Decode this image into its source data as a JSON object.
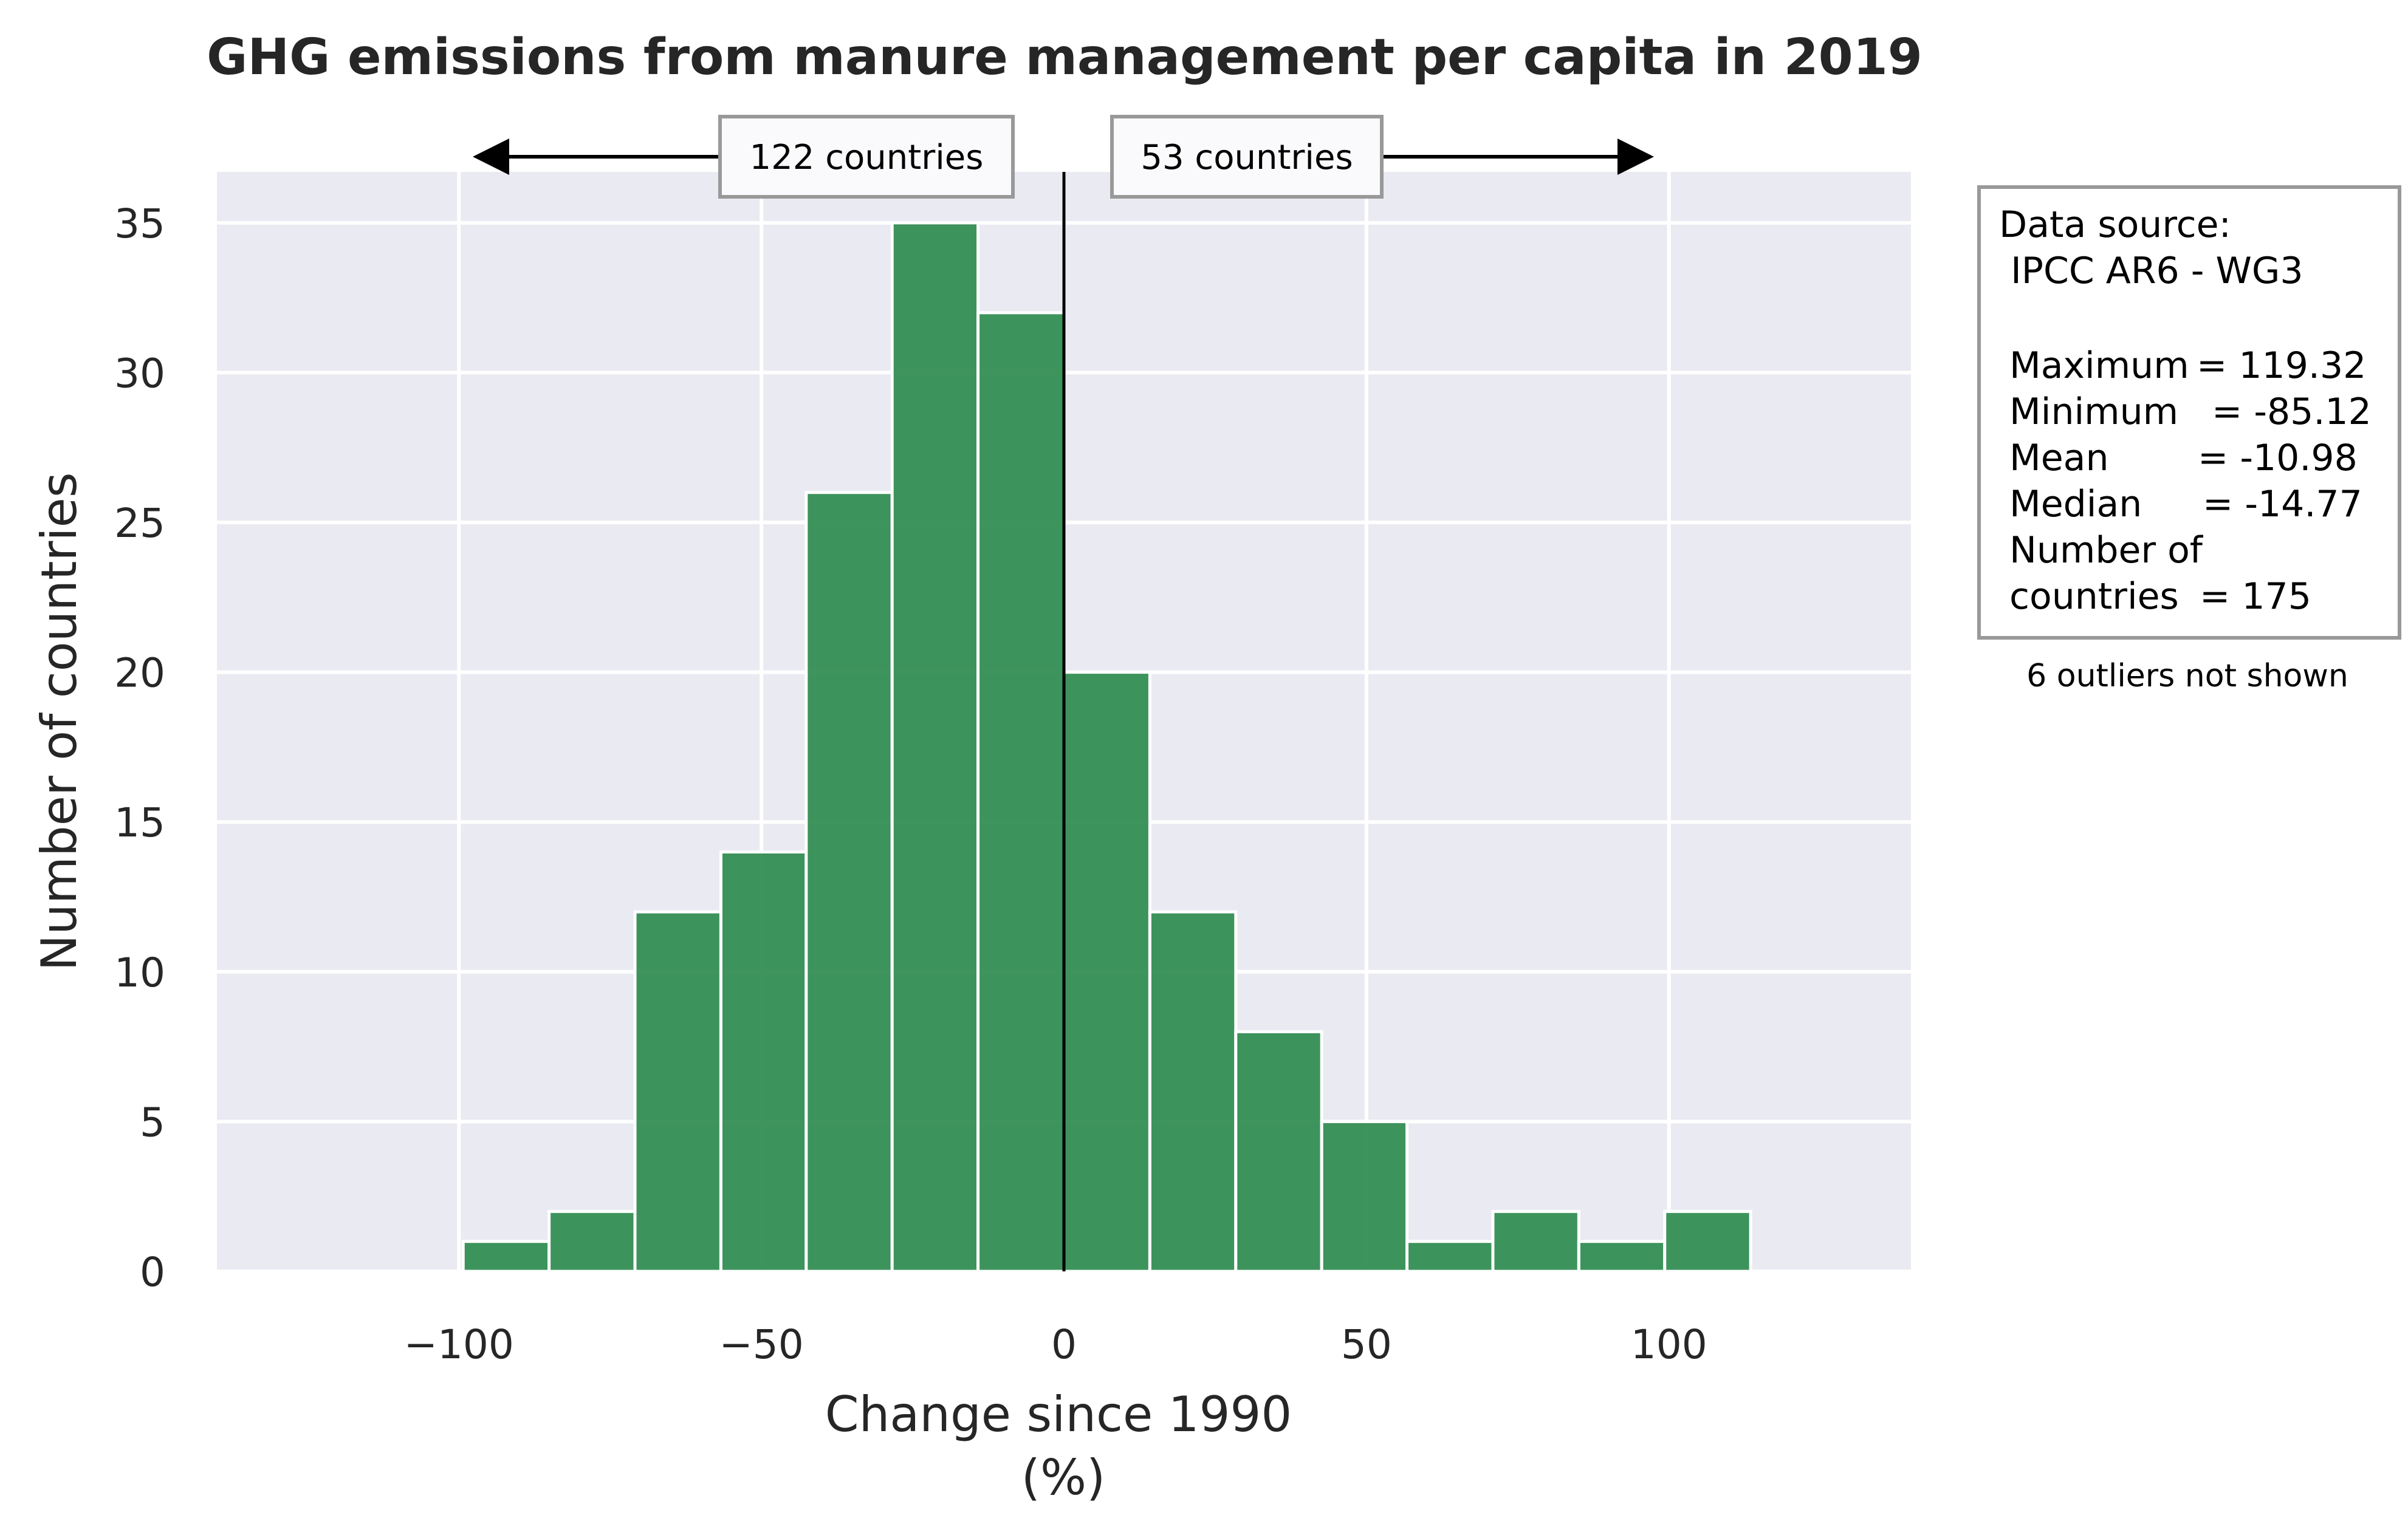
{
  "chart_data": {
    "type": "bar",
    "title": "GHG emissions from manure management per capita in 2019",
    "xlabel": "Change since 1990",
    "xlabel_unit": "(%)",
    "ylabel": "Number of countries",
    "xlim": [
      -140,
      140
    ],
    "ylim": [
      0,
      36.7
    ],
    "x_ticks": [
      -100,
      -50,
      0,
      50,
      100
    ],
    "x_tick_labels": [
      "−100",
      "−50",
      "0",
      "50",
      "100"
    ],
    "y_ticks": [
      0,
      5,
      10,
      15,
      20,
      25,
      30,
      35
    ],
    "y_tick_labels": [
      "0",
      "5",
      "10",
      "15",
      "20",
      "25",
      "30",
      "35"
    ],
    "grid": true,
    "bar_color": "#2e8b4f",
    "plot_background": "#eaeaf2",
    "bins": [
      {
        "x0": -99.3,
        "x1": -85.1,
        "count": 1
      },
      {
        "x0": -85.1,
        "x1": -70.9,
        "count": 2
      },
      {
        "x0": -70.9,
        "x1": -56.7,
        "count": 12
      },
      {
        "x0": -56.7,
        "x1": -42.6,
        "count": 14
      },
      {
        "x0": -42.6,
        "x1": -28.4,
        "count": 26
      },
      {
        "x0": -28.4,
        "x1": -14.2,
        "count": 35
      },
      {
        "x0": -14.2,
        "x1": 0.0,
        "count": 32
      },
      {
        "x0": 0.0,
        "x1": 14.2,
        "count": 20
      },
      {
        "x0": 14.2,
        "x1": 28.4,
        "count": 12
      },
      {
        "x0": 28.4,
        "x1": 42.6,
        "count": 8
      },
      {
        "x0": 42.6,
        "x1": 56.7,
        "count": 5
      },
      {
        "x0": 56.7,
        "x1": 70.9,
        "count": 1
      },
      {
        "x0": 70.9,
        "x1": 85.1,
        "count": 2
      },
      {
        "x0": 85.1,
        "x1": 99.3,
        "count": 1
      },
      {
        "x0": 99.3,
        "x1": 113.5,
        "count": 2
      }
    ],
    "reference_line_x": 0,
    "annotations": {
      "left_count": "122 countries",
      "right_count": "53 countries"
    },
    "info_box": {
      "source_label": "Data source:",
      "source_value": " IPCC AR6 - WG3",
      "stats": [
        {
          "label": "Maximum",
          "value": "= 119.32"
        },
        {
          "label": "Minimum",
          "value": "= -85.12"
        },
        {
          "label": "Mean",
          "value": "= -10.98"
        },
        {
          "label": "Median",
          "value": "= -14.77"
        }
      ],
      "count_label_1": "Number of",
      "count_label_2": "countries",
      "count_value": "= 175"
    },
    "outlier_note": "6 outliers not shown"
  }
}
